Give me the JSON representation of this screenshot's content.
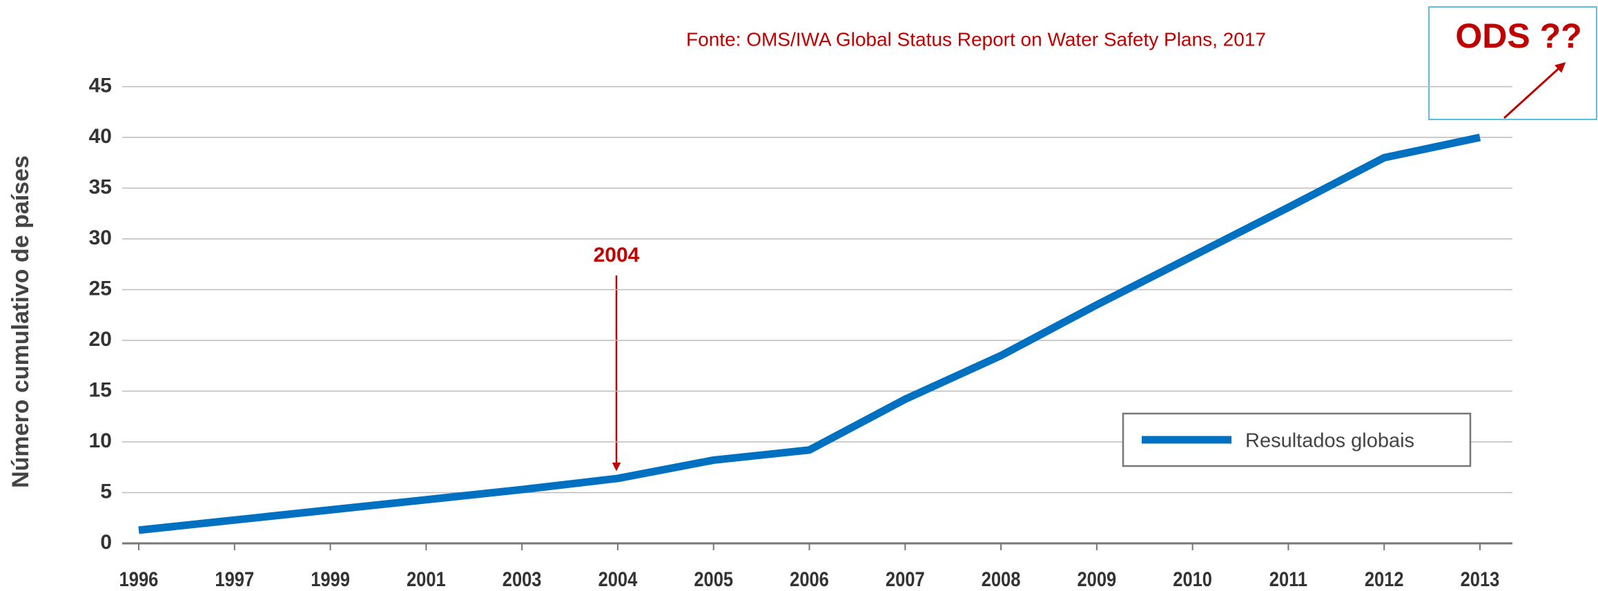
{
  "chart_data": {
    "type": "line",
    "source": "Fonte: OMS/IWA Global Status Report on Water Safety Plans, 2017",
    "ylabel": "Número cumulativo de países",
    "categories": [
      "1996",
      "1997",
      "1999",
      "2001",
      "2003",
      "2004",
      "2005",
      "2006",
      "2007",
      "2008",
      "2009",
      "2010",
      "2011",
      "2012",
      "2013"
    ],
    "series": [
      {
        "name": "Resultados globais",
        "color": "#0070c0",
        "values": [
          1.3,
          2.3,
          3.3,
          4.3,
          5.3,
          6.4,
          8.2,
          9.2,
          14.2,
          18.5,
          23.5,
          28.3,
          33.1,
          38,
          40
        ]
      }
    ],
    "ylim": [
      0,
      45
    ],
    "yticks": [
      0,
      5,
      10,
      15,
      20,
      25,
      30,
      35,
      40,
      45
    ],
    "grid": true,
    "legend": "lower right",
    "annotations": [
      {
        "text": "2004"
      },
      {
        "text": "ODS ??"
      }
    ]
  }
}
